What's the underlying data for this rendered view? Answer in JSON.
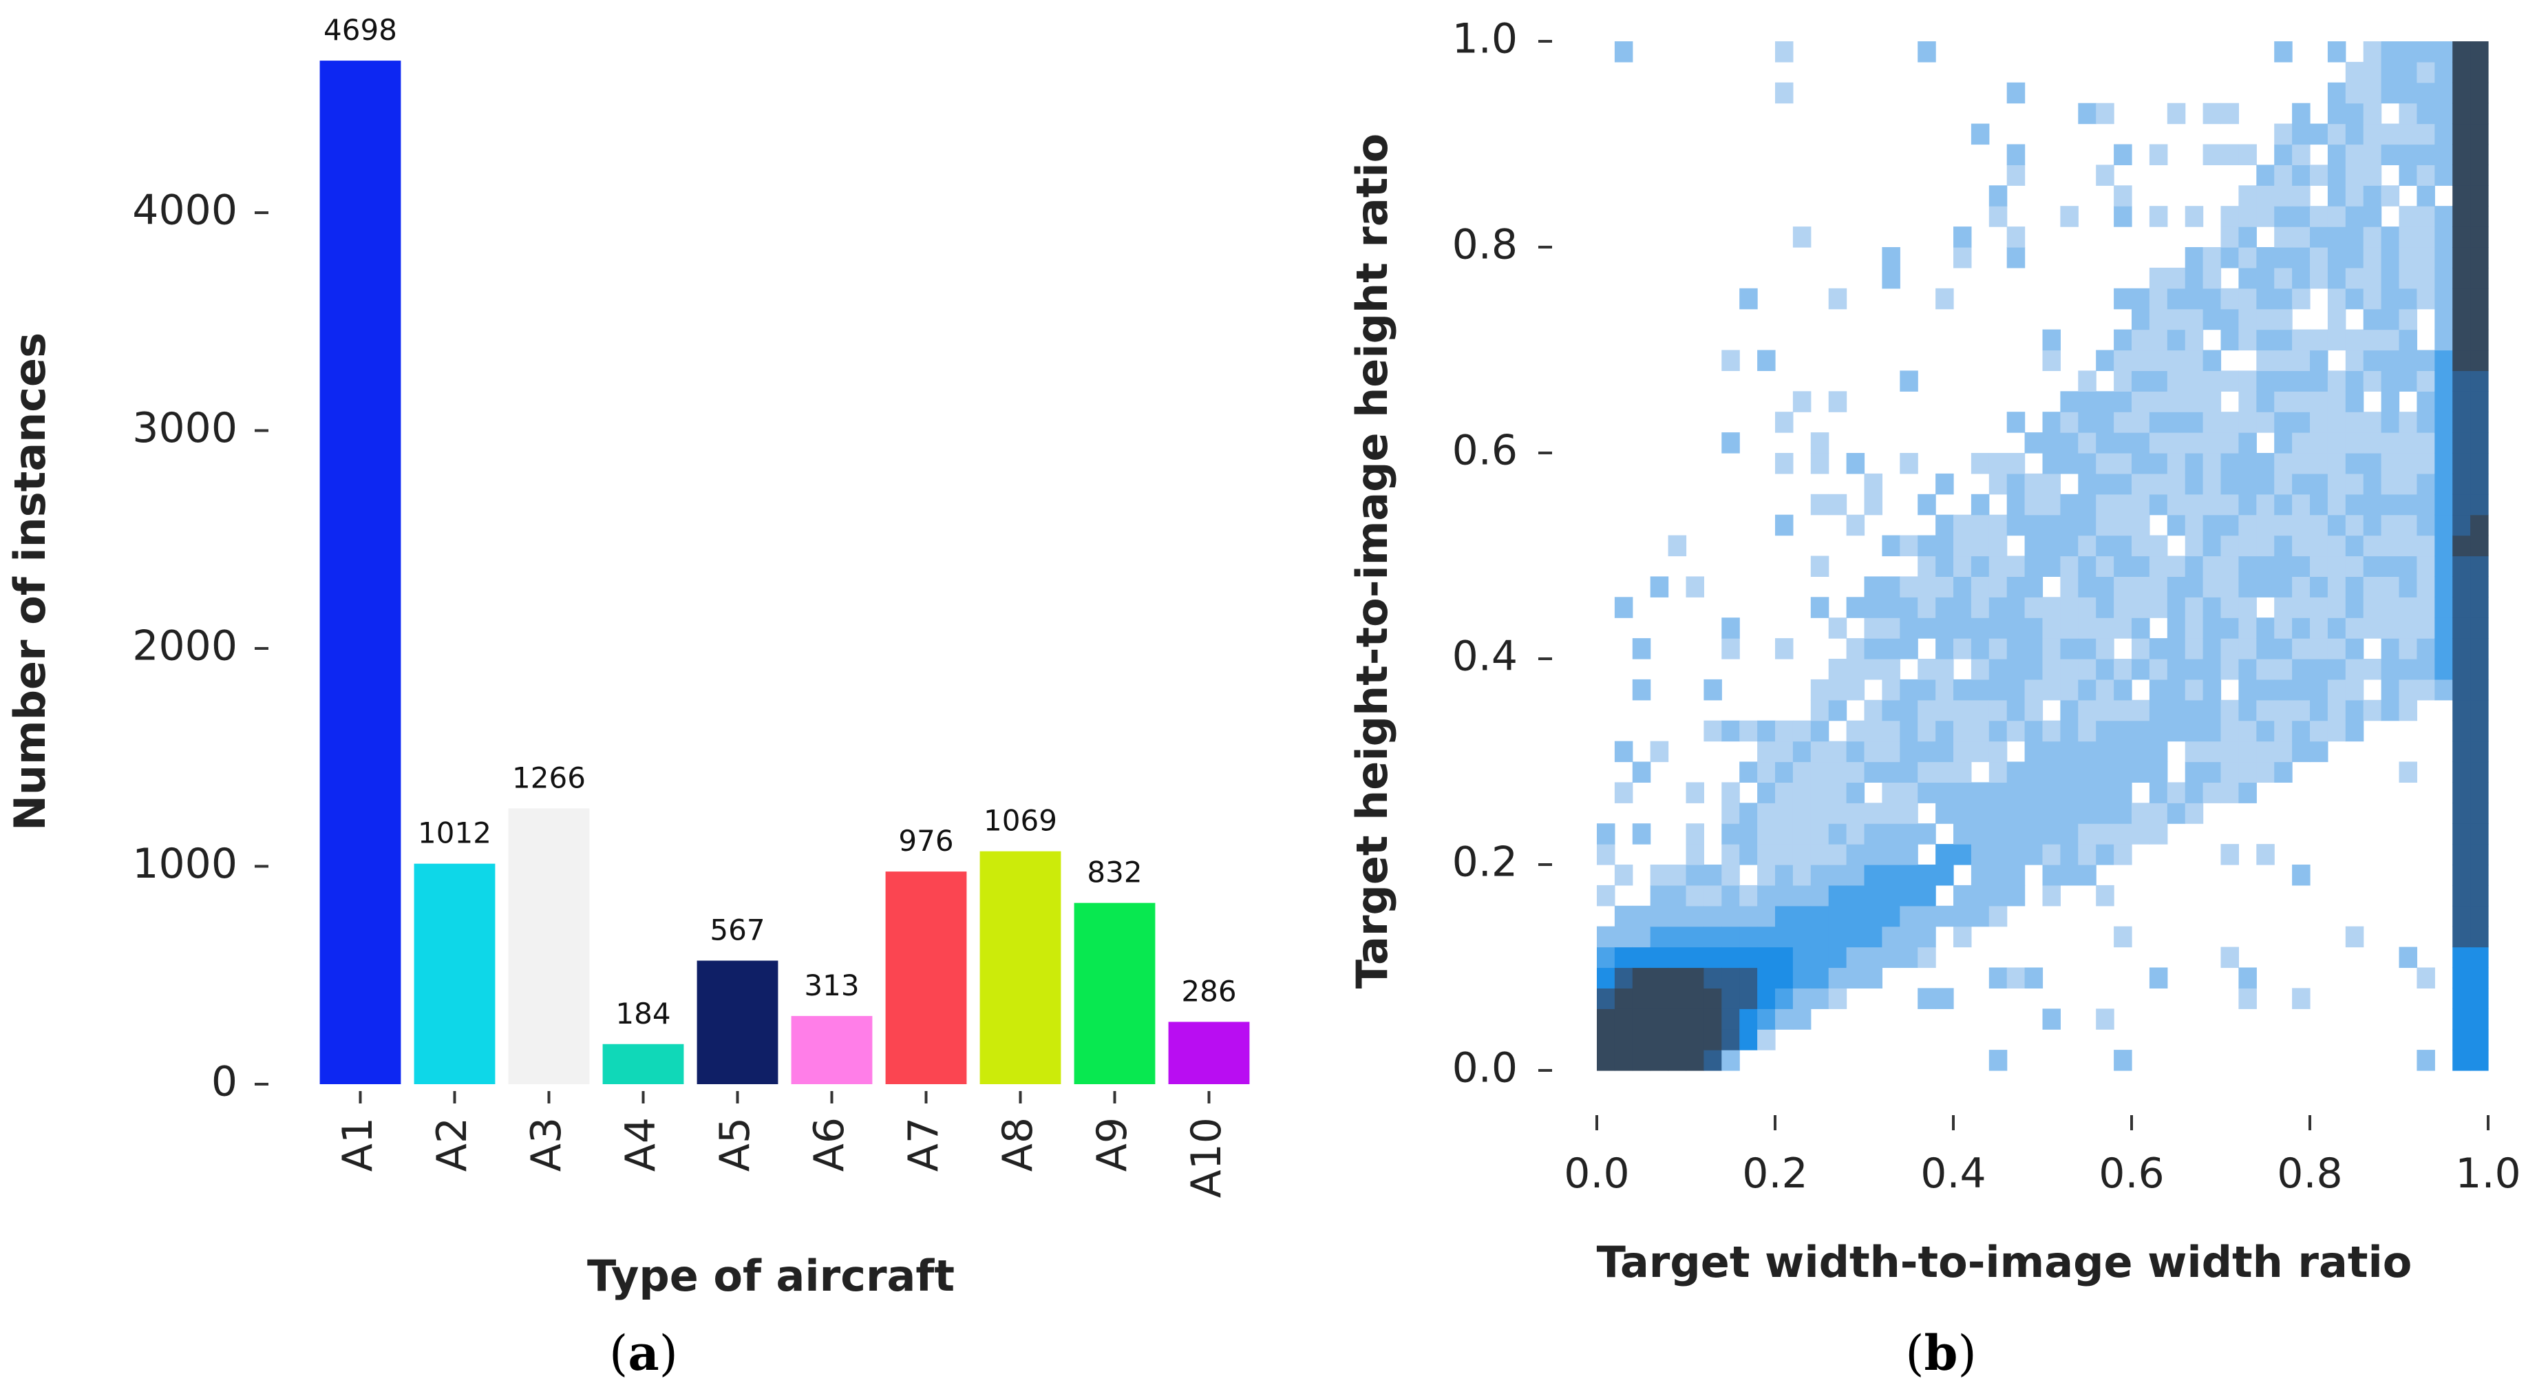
{
  "chart_data": [
    {
      "type": "bar",
      "xlabel": "Type of aircraft",
      "ylabel": "Number of instances",
      "categories": [
        "A1",
        "A2",
        "A3",
        "A4",
        "A5",
        "A6",
        "A7",
        "A8",
        "A9",
        "A10"
      ],
      "values": [
        4698,
        1012,
        1266,
        184,
        567,
        313,
        976,
        1069,
        832,
        286
      ],
      "bar_colors": [
        "#0d27f2",
        "#0ed7e8",
        "#f2f2f2",
        "#10d8b8",
        "#0f1f66",
        "#ff7ee8",
        "#fb4551",
        "#cceb0a",
        "#08e850",
        "#b90df2"
      ],
      "ylim": [
        0,
        4750
      ],
      "yticks": [
        0,
        1000,
        2000,
        3000,
        4000
      ],
      "ytick_labels": [
        "0",
        "1000",
        "2000",
        "3000",
        "4000"
      ],
      "grid": false,
      "panel_label": "a"
    },
    {
      "type": "heatmap",
      "xlabel": "Target width-to-image width ratio",
      "ylabel": "Target height-to-image height ratio",
      "xlim": [
        0.0,
        1.0
      ],
      "ylim": [
        0.0,
        1.0
      ],
      "xticks": [
        0.0,
        0.2,
        0.4,
        0.6,
        0.8,
        1.0
      ],
      "xtick_labels": [
        "0.0",
        "0.2",
        "0.4",
        "0.6",
        "0.8",
        "1.0"
      ],
      "yticks": [
        0.0,
        0.2,
        0.4,
        0.6,
        0.8,
        1.0
      ],
      "ytick_labels": [
        "0.0",
        "0.2",
        "0.4",
        "0.6",
        "0.8",
        "1.0"
      ],
      "bins": 50,
      "colormap": [
        "#b3d3f2",
        "#8cc0ee",
        "#4aa3ea",
        "#1e8ee6",
        "#2f5f8f",
        "#35495e"
      ],
      "grid": false,
      "panel_label": "b"
    }
  ],
  "labels": {
    "a_open": "(",
    "a_letter": "a",
    "a_close": ")",
    "b_open": "(",
    "b_letter": "b",
    "b_close": ")"
  }
}
